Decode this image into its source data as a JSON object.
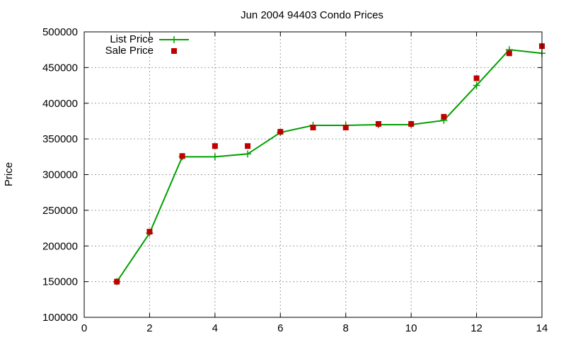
{
  "chart_data": {
    "type": "line",
    "title": "Jun 2004 94403 Condo Prices",
    "xlabel": "",
    "ylabel": "Price",
    "xlim": [
      0,
      14
    ],
    "ylim": [
      100000,
      500000
    ],
    "xticks": [
      0,
      2,
      4,
      6,
      8,
      10,
      12,
      14
    ],
    "yticks": [
      100000,
      150000,
      200000,
      250000,
      300000,
      350000,
      400000,
      450000,
      500000
    ],
    "grid": true,
    "legend_position": "top-left",
    "series": [
      {
        "name": "List Price",
        "style": "line-with-plus-markers",
        "color": "#00a000",
        "x": [
          1,
          2,
          3,
          4,
          5,
          6,
          7,
          8,
          9,
          10,
          11,
          12,
          13,
          14
        ],
        "y": [
          150000,
          218000,
          325000,
          325000,
          329000,
          359000,
          369000,
          369000,
          370000,
          370000,
          376000,
          425000,
          475000,
          470000
        ]
      },
      {
        "name": "Sale Price",
        "style": "square-markers",
        "color": "#c00000",
        "x": [
          1,
          2,
          3,
          4,
          5,
          6,
          7,
          8,
          9,
          10,
          11,
          12,
          13,
          14
        ],
        "y": [
          150000,
          220000,
          326000,
          340000,
          340000,
          360000,
          366000,
          366000,
          371000,
          371000,
          381000,
          435000,
          470000,
          480000
        ]
      }
    ]
  }
}
